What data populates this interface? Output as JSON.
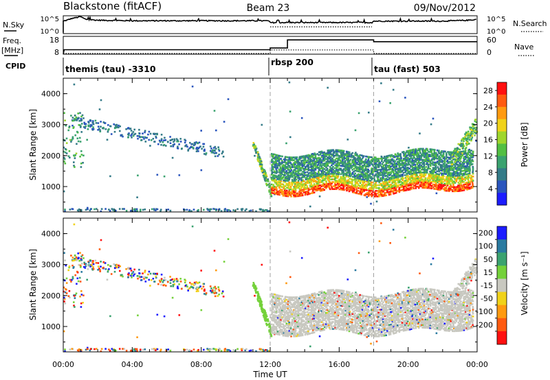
{
  "header": {
    "station": "Blackstone (fitACF)",
    "beam": "Beam 23",
    "date": "09/Nov/2012"
  },
  "side_labels": {
    "nsky": "N.Sky",
    "nsky_ticks": [
      "10^5",
      "10^0"
    ],
    "nsearch": "N.Search",
    "nsearch_ticks": [
      "10^5",
      "10^0"
    ],
    "freq_line1": "Freq.",
    "freq_line2": "[MHz]",
    "freq_ticks": [
      "18",
      "8"
    ],
    "nave": "Nave",
    "nave_ticks": [
      "60",
      "0"
    ],
    "cpid": "CPID"
  },
  "cpid_segments": [
    {
      "label": "themis (tau) -3310",
      "start": 0,
      "end": 12
    },
    {
      "label": "rbsp 200",
      "start": 12,
      "end": 18
    },
    {
      "label": "tau (fast) 503",
      "start": 18,
      "end": 24
    }
  ],
  "chart_data": [
    {
      "type": "line",
      "panel": "noise",
      "series": [
        {
          "name": "N.Sky",
          "x": [
            0,
            0.2,
            0.5,
            1.0,
            1.3,
            2,
            4,
            6,
            8,
            10,
            11.9,
            12,
            14,
            16,
            17.9,
            18,
            20,
            22,
            23.5,
            24
          ],
          "y_level": [
            0.7,
            0.75,
            0.85,
            0.95,
            0.8,
            0.75,
            0.72,
            0.72,
            0.72,
            0.72,
            0.72,
            0.62,
            0.62,
            0.62,
            0.62,
            0.7,
            0.7,
            0.7,
            0.75,
            0.8
          ]
        },
        {
          "name": "N.Search",
          "x": [
            12,
            14,
            16,
            17.9
          ],
          "y_level": [
            0.38,
            0.38,
            0.38,
            0.38
          ]
        }
      ]
    },
    {
      "type": "line",
      "panel": "frequency",
      "series": [
        {
          "name": "Freq.",
          "x": [
            0,
            0.05,
            12,
            12,
            13,
            13,
            18,
            18,
            24
          ],
          "y": [
            8,
            10.5,
            10.5,
            11.5,
            11.5,
            16,
            16,
            15,
            15
          ]
        },
        {
          "name": "Nave",
          "x": [
            0,
            12,
            12,
            18,
            18,
            24
          ],
          "y": [
            8,
            8,
            10,
            10,
            8,
            8
          ]
        }
      ]
    },
    {
      "type": "heatmap",
      "panel": "power",
      "xlabel": "",
      "ylabel": "Slant Range [km]",
      "xlim": [
        0,
        24
      ],
      "ylim": [
        180,
        4500
      ],
      "xticks": [
        0,
        4,
        8,
        12,
        16,
        20,
        24
      ],
      "yticks": [
        1000,
        2000,
        3000,
        4000
      ],
      "colorbar": {
        "label": "Power [dB]",
        "ticks": [
          4,
          8,
          12,
          16,
          20,
          24,
          28
        ],
        "range": [
          0,
          30
        ],
        "colors": [
          "#1c1cff",
          "#2a55bd",
          "#347b88",
          "#3aa26f",
          "#52bf42",
          "#9fd62c",
          "#f0d219",
          "#ff9a10",
          "#ff5a10",
          "#ff1010"
        ]
      }
    },
    {
      "type": "heatmap",
      "panel": "velocity",
      "xlabel": "Time UT",
      "ylabel": "Slant Range [km]",
      "xlim": [
        0,
        24
      ],
      "ylim": [
        180,
        4500
      ],
      "xticks": [
        0,
        4,
        8,
        12,
        16,
        20,
        24
      ],
      "yticks": [
        1000,
        2000,
        3000,
        4000
      ],
      "colorbar": {
        "label": "Velocity [m s⁻¹]",
        "ticks": [
          "200",
          "100",
          "50",
          "15",
          "-15",
          "-50",
          "-100",
          "-200"
        ],
        "colors": [
          "#1c1cff",
          "#2a7aa0",
          "#3aa26f",
          "#74d13a",
          "#c8c8c0",
          "#f0d219",
          "#ff9a10",
          "#ff5a10",
          "#ff1010"
        ]
      }
    }
  ],
  "axis": {
    "xtick_labels": [
      "00:00",
      "04:00",
      "08:00",
      "12:00",
      "16:00",
      "20:00",
      "00:00"
    ],
    "ytick_labels": [
      "1000",
      "2000",
      "3000",
      "4000"
    ],
    "xlabel": "Time UT",
    "ylabel": "Slant Range [km]",
    "power_label": "Power [dB]",
    "velocity_label": "Velocity [m s⁻¹]",
    "power_ticks": [
      "4",
      "8",
      "12",
      "16",
      "20",
      "24",
      "28"
    ],
    "velocity_ticks": [
      "200",
      "100",
      "50",
      "15",
      "-15",
      "-50",
      "-100",
      "-200"
    ]
  },
  "colors": {
    "ground": "#c8c8c0",
    "dashed": "#a0a0a0"
  }
}
